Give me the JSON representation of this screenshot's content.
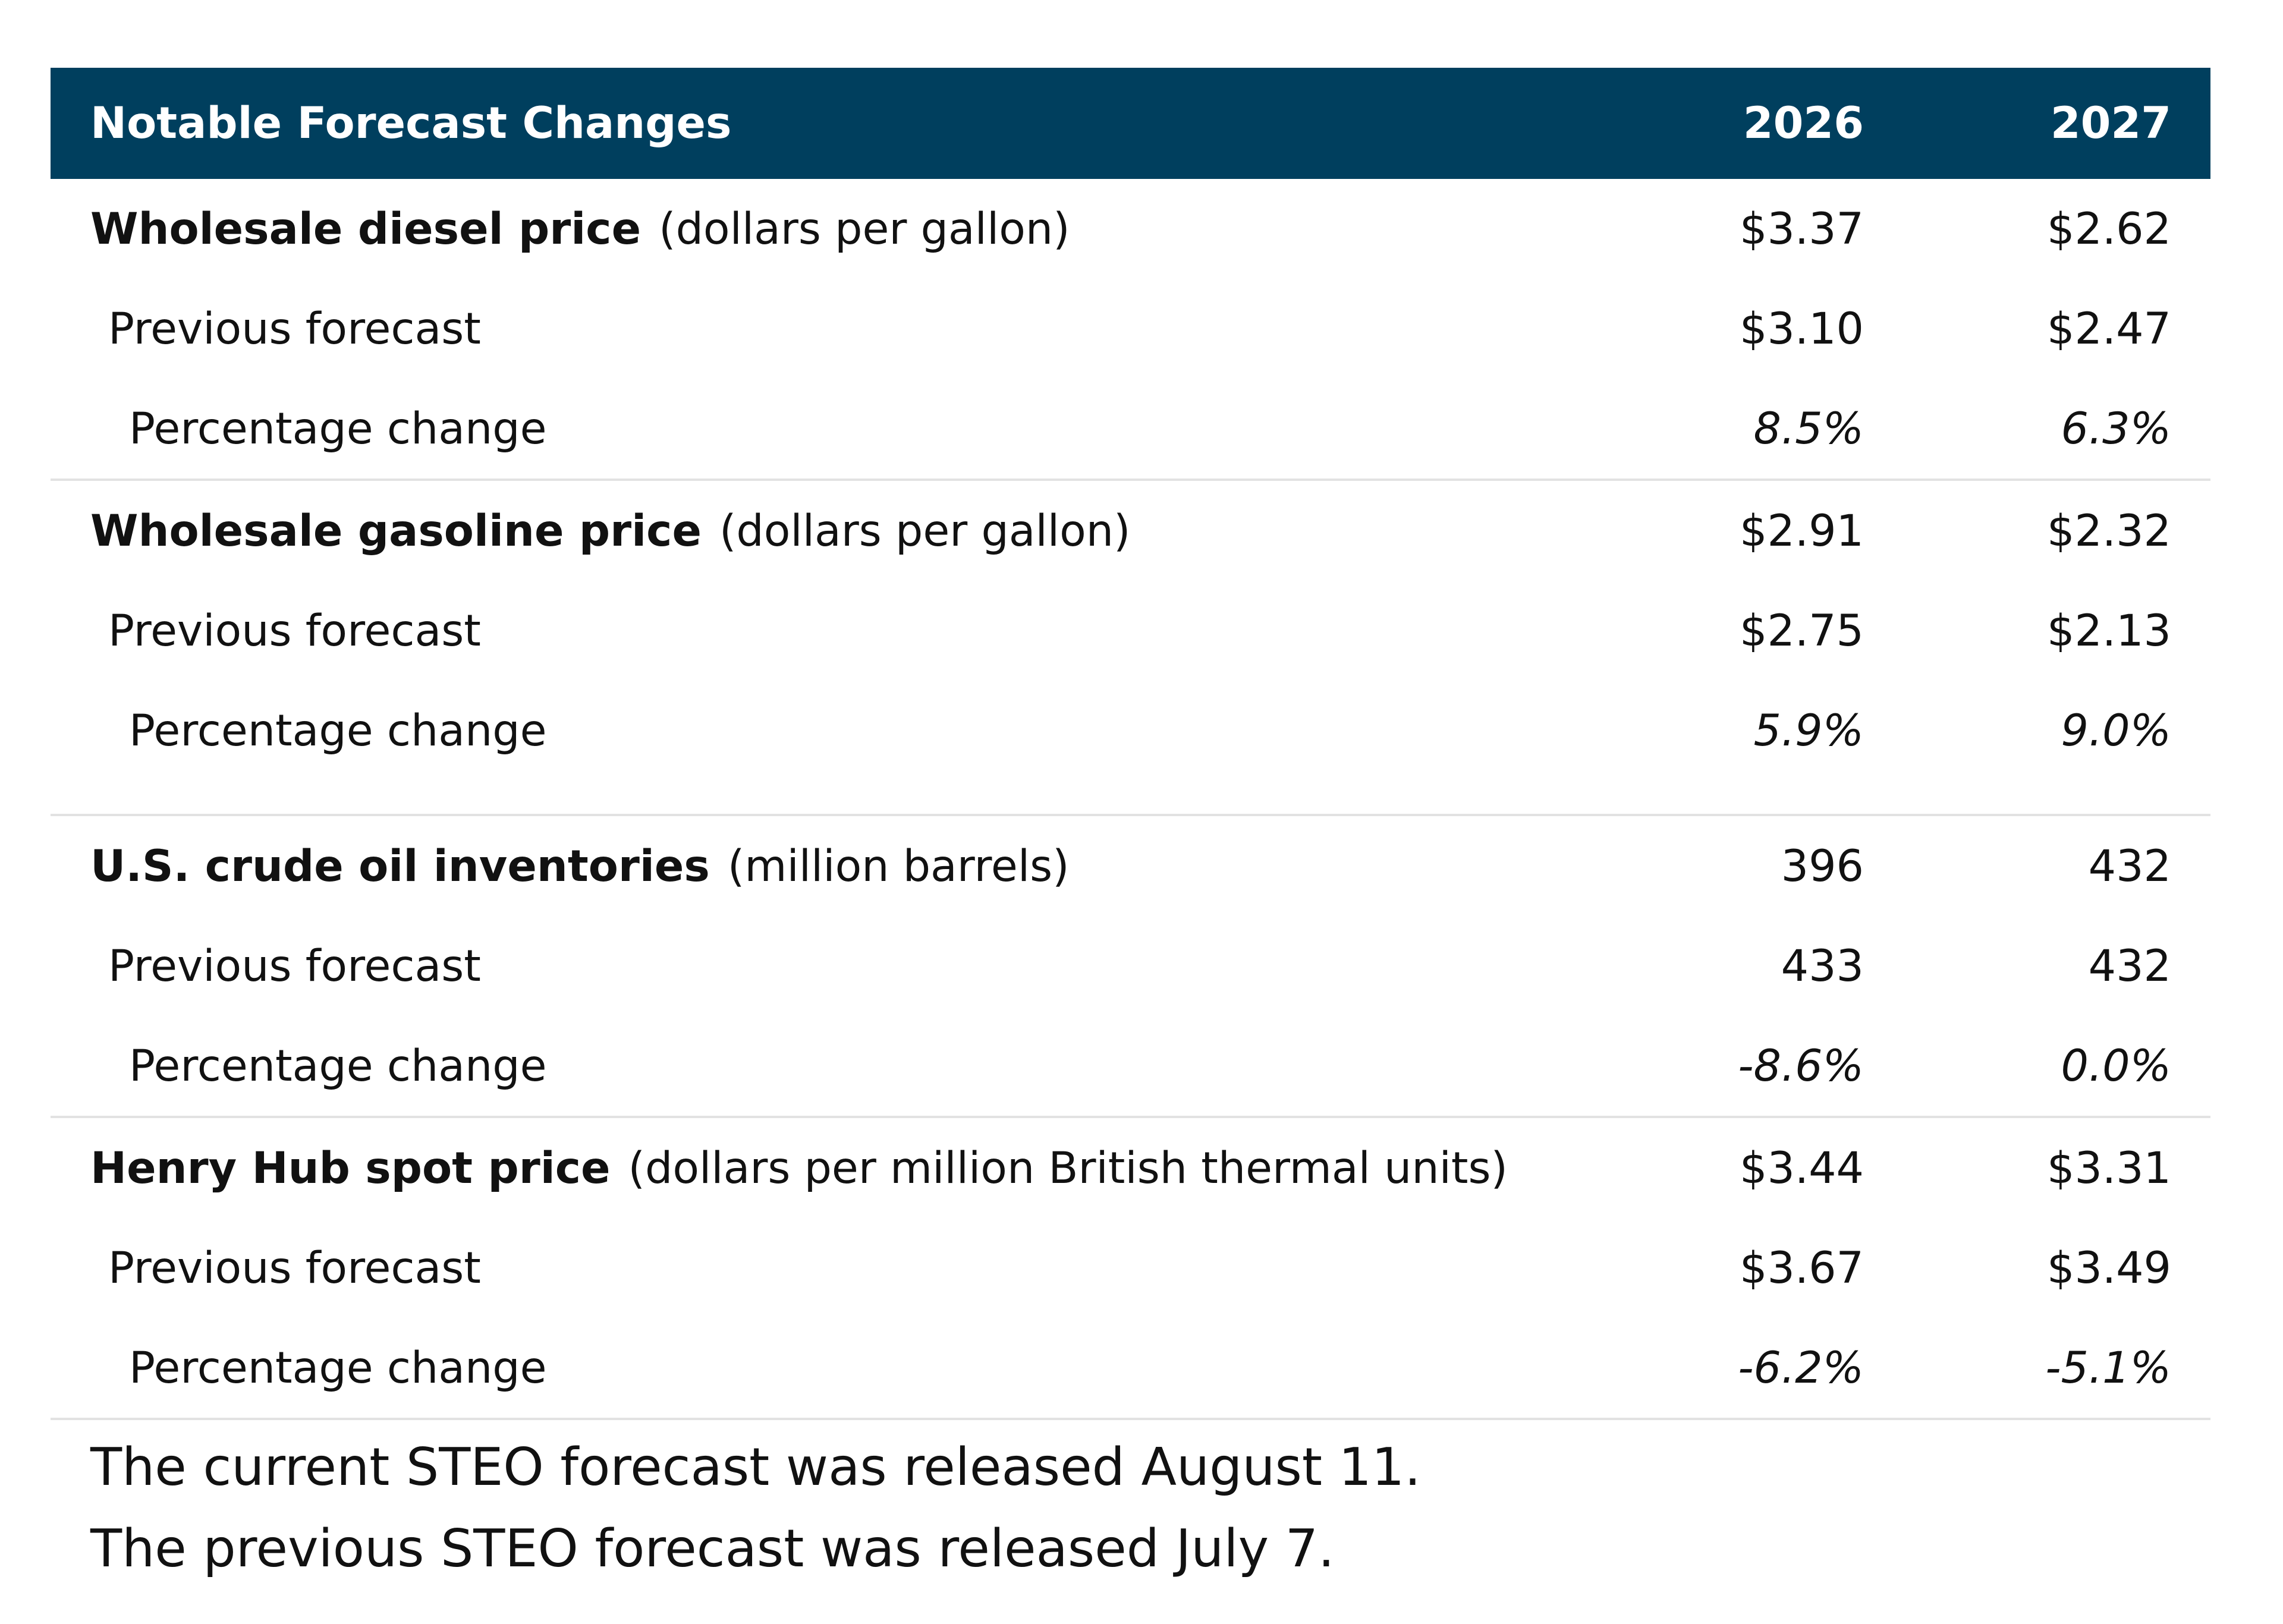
{
  "header": {
    "title": "Notable Forecast Changes",
    "year_1": "2026",
    "year_2": "2027"
  },
  "groups": [
    {
      "label": "Wholesale diesel price",
      "unit": "(dollars per gallon)",
      "current": [
        "$3.37",
        "$2.62"
      ],
      "previous_label": "Previous forecast",
      "previous": [
        "$3.10",
        "$2.47"
      ],
      "change_label": "Percentage change",
      "change": [
        "8.5%",
        "6.3%"
      ]
    },
    {
      "label": "Wholesale gasoline price",
      "unit": "(dollars per gallon)",
      "current": [
        "$2.91",
        "$2.32"
      ],
      "previous_label": "Previous forecast",
      "previous": [
        "$2.75",
        "$2.13"
      ],
      "change_label": "Percentage change",
      "change": [
        "5.9%",
        "9.0%"
      ]
    },
    {
      "label": "U.S. crude oil inventories",
      "unit": "(million barrels)",
      "current": [
        "396",
        "432"
      ],
      "previous_label": "Previous forecast",
      "previous": [
        "433",
        "432"
      ],
      "change_label": "Percentage change",
      "change": [
        "-8.6%",
        "0.0%"
      ]
    },
    {
      "label": "Henry Hub spot price",
      "unit": "(dollars per million British thermal units)",
      "current": [
        "$3.44",
        "$3.31"
      ],
      "previous_label": "Previous forecast",
      "previous": [
        "$3.67",
        "$3.49"
      ],
      "change_label": "Percentage change",
      "change": [
        "-6.2%",
        "-5.1%"
      ]
    }
  ],
  "notes": [
    "The current STEO forecast was released August 11.",
    "The previous STEO forecast was released July 7."
  ],
  "colors": {
    "header_bg": "#003f5e",
    "header_text": "#ffffff",
    "divider": "#e2e2e2"
  }
}
